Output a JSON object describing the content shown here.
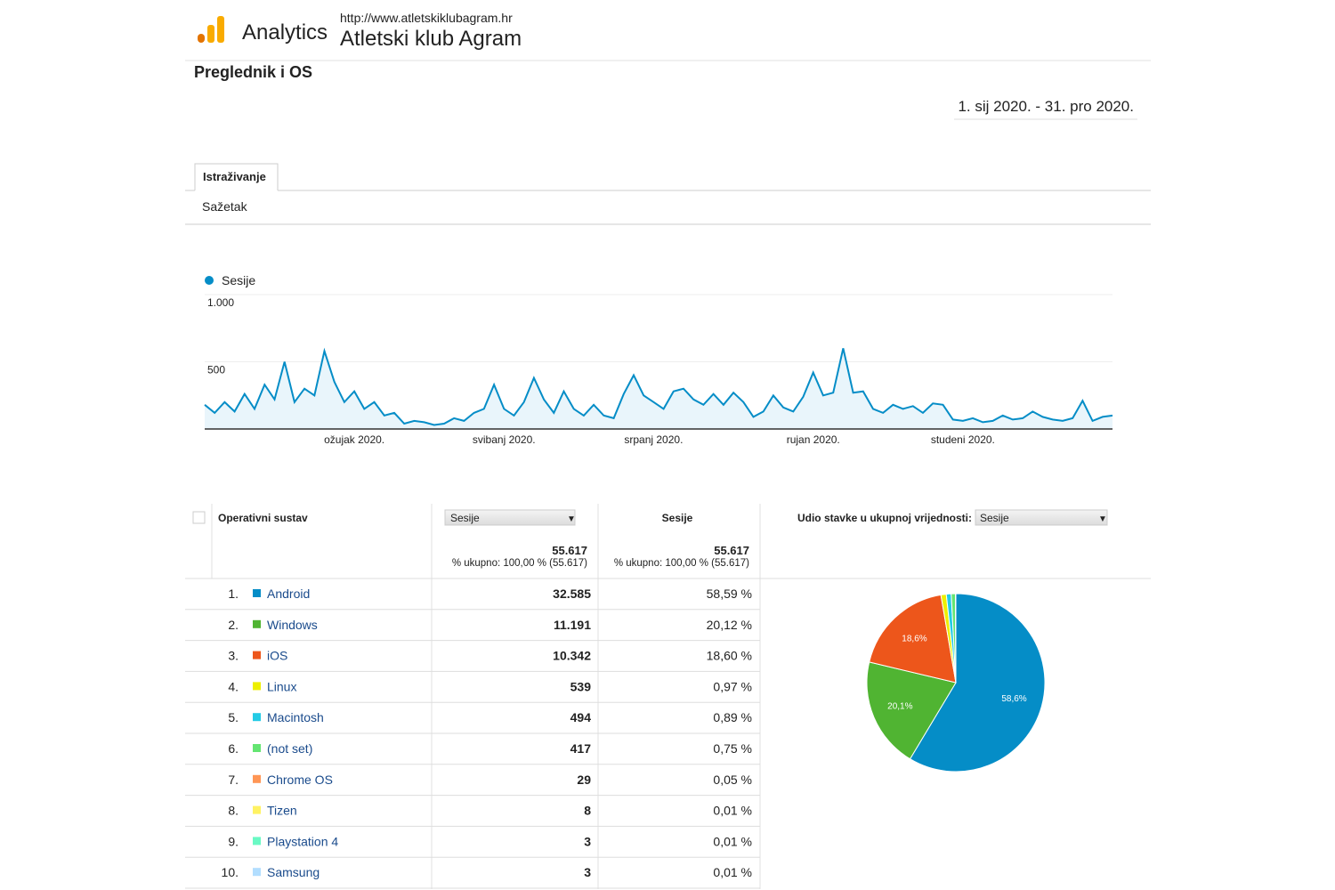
{
  "header": {
    "product": "Analytics",
    "url": "http://www.atletskiklubagram.hr",
    "property": "Atletski klub Agram"
  },
  "page_title": "Preglednik i OS",
  "date_range": "1. sij 2020. - 31. pro 2020.",
  "tab": "Istraživanje",
  "subtab": "Sažetak",
  "chart_data": [
    {
      "type": "line",
      "categories": [
        null,
        null,
        null,
        null,
        null,
        null,
        null,
        null,
        null,
        null,
        null,
        null,
        null,
        null,
        null,
        "ožujak 2020.",
        null,
        null,
        null,
        null,
        null,
        null,
        null,
        null,
        null,
        null,
        null,
        null,
        null,
        null,
        "svibanj 2020.",
        null,
        null,
        null,
        null,
        null,
        null,
        null,
        null,
        null,
        null,
        null,
        null,
        null,
        null,
        "srpanj 2020.",
        null,
        null,
        null,
        null,
        null,
        null,
        null,
        null,
        null,
        null,
        null,
        null,
        null,
        null,
        null,
        "rujan 2020.",
        null,
        null,
        null,
        null,
        null,
        null,
        null,
        null,
        null,
        null,
        null,
        null,
        null,
        null,
        "studeni 2020.",
        null,
        null,
        null,
        null,
        null,
        null,
        null,
        null,
        null,
        null,
        null,
        null,
        null,
        null,
        null
      ],
      "series": [
        {
          "name": "Sesije",
          "color": "#058dc7",
          "values": [
            180,
            120,
            200,
            130,
            260,
            150,
            330,
            220,
            500,
            200,
            300,
            250,
            580,
            350,
            200,
            280,
            150,
            200,
            100,
            120,
            40,
            60,
            50,
            30,
            40,
            80,
            60,
            120,
            150,
            330,
            150,
            100,
            200,
            380,
            220,
            120,
            280,
            150,
            100,
            180,
            100,
            80,
            260,
            400,
            250,
            200,
            150,
            280,
            300,
            220,
            180,
            260,
            180,
            270,
            200,
            90,
            130,
            250,
            160,
            130,
            240,
            420,
            250,
            270,
            600,
            270,
            280,
            150,
            120,
            180,
            150,
            170,
            120,
            190,
            180,
            70,
            60,
            80,
            50,
            60,
            100,
            70,
            80,
            130,
            90,
            70,
            60,
            80,
            210,
            60,
            90,
            100
          ]
        }
      ],
      "ylim": [
        0,
        1000
      ],
      "yticks": [
        {
          "value": 500,
          "label": "500"
        },
        {
          "value": 1000,
          "label": "1.000"
        }
      ],
      "grid": true
    },
    {
      "type": "pie",
      "values": [
        58.6,
        20.1,
        18.6,
        0.97,
        0.89,
        0.75,
        0.05,
        0.01,
        0.01,
        0.01
      ],
      "value_labels": [
        "58,6%",
        "20,1%",
        "18,6%",
        null,
        null,
        null,
        null,
        null,
        null,
        null
      ],
      "colors": [
        "#058dc7",
        "#50b432",
        "#ed561b",
        "#edef00",
        "#24cbe5",
        "#64e572",
        "#ff9655",
        "#fff263",
        "#6af9c4",
        "#b2deff"
      ]
    }
  ],
  "table": {
    "dimension_header": "Operativni sustav",
    "metric_select": "Sesije",
    "metric_header": "Sesije",
    "share_header": "Udio stavke u ukupnoj vrijednosti:",
    "share_select": "Sesije",
    "totals": [
      {
        "value": "55.617",
        "note": "% ukupno: 100,00 % (55.617)"
      },
      {
        "value": "55.617",
        "note": "% ukupno: 100,00 % (55.617)"
      }
    ],
    "rows": [
      [
        "1.",
        "Android",
        "32.585",
        "58,59 %"
      ],
      [
        "2.",
        "Windows",
        "11.191",
        "20,12 %"
      ],
      [
        "3.",
        "iOS",
        "10.342",
        "18,60 %"
      ],
      [
        "4.",
        "Linux",
        "539",
        "0,97 %"
      ],
      [
        "5.",
        "Macintosh",
        "494",
        "0,89 %"
      ],
      [
        "6.",
        "(not set)",
        "417",
        "0,75 %"
      ],
      [
        "7.",
        "Chrome OS",
        "29",
        "0,05 %"
      ],
      [
        "8.",
        "Tizen",
        "8",
        "0,01 %"
      ],
      [
        "9.",
        "Playstation 4",
        "3",
        "0,01 %"
      ],
      [
        "10.",
        "Samsung",
        "3",
        "0,01 %"
      ]
    ]
  }
}
